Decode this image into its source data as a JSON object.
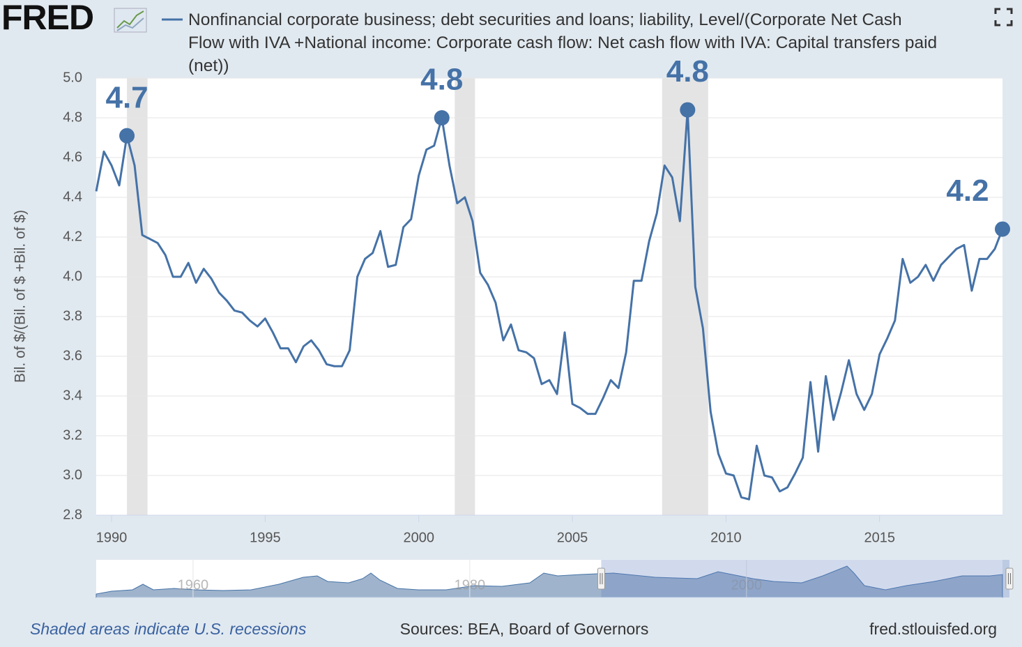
{
  "logo": "FRED",
  "chart_data": {
    "type": "line",
    "ylabel": "Bil. of $/(Bil. of $ +Bil. of $)",
    "x": [
      1989.5,
      1989.75,
      1990,
      1990.25,
      1990.5,
      1990.75,
      1991,
      1991.25,
      1991.5,
      1991.75,
      1992,
      1992.25,
      1992.5,
      1992.75,
      1993,
      1993.25,
      1993.5,
      1993.75,
      1994,
      1994.25,
      1994.5,
      1994.75,
      1995,
      1995.25,
      1995.5,
      1995.75,
      1996,
      1996.25,
      1996.5,
      1996.75,
      1997,
      1997.25,
      1997.5,
      1997.75,
      1998,
      1998.25,
      1998.5,
      1998.75,
      1999,
      1999.25,
      1999.5,
      1999.75,
      2000,
      2000.25,
      2000.5,
      2000.75,
      2001,
      2001.25,
      2001.5,
      2001.75,
      2002,
      2002.25,
      2002.5,
      2002.75,
      2003,
      2003.25,
      2003.5,
      2003.75,
      2004,
      2004.25,
      2004.5,
      2004.75,
      2005,
      2005.25,
      2005.5,
      2005.75,
      2006,
      2006.25,
      2006.5,
      2006.75,
      2007,
      2007.25,
      2007.5,
      2007.75,
      2008,
      2008.25,
      2008.5,
      2008.75,
      2009,
      2009.25,
      2009.5,
      2009.75,
      2010,
      2010.25,
      2010.5,
      2010.75,
      2011,
      2011.25,
      2011.5,
      2011.75,
      2012,
      2012.25,
      2012.5,
      2012.75,
      2013,
      2013.25,
      2013.5,
      2013.75,
      2014,
      2014.25,
      2014.5,
      2014.75,
      2015,
      2015.25,
      2015.5,
      2015.75,
      2016,
      2016.25,
      2016.5,
      2016.75,
      2017,
      2017.25,
      2017.5,
      2017.75,
      2018,
      2018.25,
      2018.5,
      2018.75,
      2019
    ],
    "series": [
      {
        "name": "Nonfinancial corporate business; debt securities and loans; liability, Level/(Corporate Net Cash Flow with IVA +National income: Corporate cash flow: Net cash flow with IVA: Capital transfers paid (net))",
        "color": "#4572a7",
        "values": [
          4.43,
          4.63,
          4.56,
          4.46,
          4.71,
          4.56,
          4.21,
          4.19,
          4.17,
          4.11,
          4.0,
          4.0,
          4.07,
          3.97,
          4.04,
          3.99,
          3.92,
          3.88,
          3.83,
          3.82,
          3.78,
          3.75,
          3.79,
          3.72,
          3.64,
          3.64,
          3.57,
          3.65,
          3.68,
          3.63,
          3.56,
          3.55,
          3.55,
          3.63,
          4.0,
          4.09,
          4.12,
          4.23,
          4.05,
          4.06,
          4.25,
          4.29,
          4.51,
          4.64,
          4.66,
          4.8,
          4.56,
          4.37,
          4.4,
          4.28,
          4.02,
          3.96,
          3.87,
          3.68,
          3.76,
          3.63,
          3.62,
          3.59,
          3.46,
          3.48,
          3.41,
          3.72,
          3.36,
          3.34,
          3.31,
          3.31,
          3.39,
          3.48,
          3.44,
          3.62,
          3.98,
          3.98,
          4.18,
          4.32,
          4.56,
          4.5,
          4.28,
          4.84,
          3.95,
          3.74,
          3.32,
          3.11,
          3.01,
          3.0,
          2.89,
          2.88,
          3.15,
          3.0,
          2.99,
          2.92,
          2.94,
          3.01,
          3.09,
          3.47,
          3.12,
          3.5,
          3.28,
          3.42,
          3.58,
          3.41,
          3.33,
          3.41,
          3.61,
          3.69,
          3.78,
          4.09,
          3.97,
          4.0,
          4.06,
          3.98,
          4.06,
          4.1,
          4.14,
          4.16,
          3.93,
          4.09,
          4.09,
          4.14,
          4.24
        ],
        "value_labels": [
          null,
          null,
          null,
          null,
          "4.7",
          null,
          null,
          null,
          null,
          null,
          null,
          null,
          null,
          null,
          null,
          null,
          null,
          null,
          null,
          null,
          null,
          null,
          null,
          null,
          null,
          null,
          null,
          null,
          null,
          null,
          null,
          null,
          null,
          null,
          null,
          null,
          null,
          null,
          null,
          null,
          null,
          null,
          null,
          null,
          null,
          "4.8",
          null,
          null,
          null,
          null,
          null,
          null,
          null,
          null,
          null,
          null,
          null,
          null,
          null,
          null,
          null,
          null,
          null,
          null,
          null,
          null,
          null,
          null,
          null,
          null,
          null,
          null,
          null,
          null,
          null,
          null,
          null,
          "4.8",
          null,
          null,
          null,
          null,
          null,
          null,
          null,
          null,
          null,
          null,
          null,
          null,
          null,
          null,
          null,
          null,
          null,
          null,
          null,
          null,
          null,
          null,
          null,
          null,
          null,
          null,
          null,
          null,
          null,
          null,
          null,
          null,
          null,
          null,
          null,
          null,
          null,
          null,
          null,
          null,
          "4.2"
        ]
      }
    ],
    "xlim": [
      1989.5,
      2019
    ],
    "xticks": [
      1990,
      1995,
      2000,
      2005,
      2010,
      2015
    ],
    "ylim": [
      2.8,
      5
    ],
    "yticks": [
      2.8,
      {
        "value": 3,
        "label": "3.0"
      },
      3.2,
      3.4,
      3.6,
      3.8,
      {
        "value": 4,
        "label": "4.0"
      },
      4.2,
      4.4,
      4.6,
      4.8,
      {
        "value": 5,
        "label": "5.0"
      }
    ],
    "grid": true,
    "recessions": [
      [
        1990.5,
        1991.17
      ],
      [
        2001.17,
        2001.83
      ],
      [
        2007.92,
        2009.42
      ]
    ],
    "navigator": {
      "xlim": [
        1953,
        2018.5
      ],
      "xticks": [
        1960,
        1980,
        2000
      ]
    }
  },
  "notes": {
    "recessions": "Shaded areas indicate U.S. recessions",
    "source": "Sources: BEA, Board of Governors",
    "url": "fred.stlouisfed.org"
  }
}
